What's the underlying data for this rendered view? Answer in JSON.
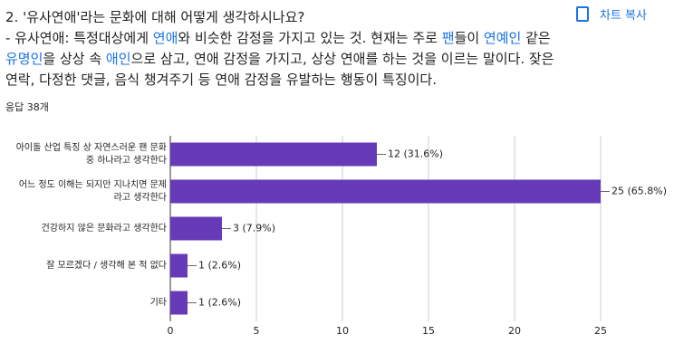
{
  "question": {
    "title": "2. '유사연애'라는 문화에 대해 어떻게 생각하시나요?",
    "description": [
      {
        "text": "- 유사연애:  특정대상에게 ",
        "link": false
      },
      {
        "text": "연애",
        "link": true
      },
      {
        "text": "와 비슷한 감정을 가지고 있는 것. 현재는 주로 ",
        "link": false
      },
      {
        "text": "팬",
        "link": true
      },
      {
        "text": "들이 ",
        "link": false
      },
      {
        "text": "연예인",
        "link": true
      },
      {
        "text": " 같은 ",
        "link": false
      },
      {
        "text": "유명인",
        "link": true
      },
      {
        "text": "을 상상 속 ",
        "link": false
      },
      {
        "text": "애인",
        "link": true
      },
      {
        "text": "으로 삼고, 연애 감정을 가지고, 상상 연애를 하는 것을 이르는 말이다.  잦은 연락, 다정한 댓글, 음식 챙겨주기 등 연애 감정을 유발하는 행동이 특징이다.",
        "link": false
      }
    ]
  },
  "response_count": "응답 38개",
  "copy_button": "차트 복사",
  "chart_data": {
    "type": "hbar",
    "categories": [
      "아이돌 산업 특징 상 자연스러운 팬 문화 중 하나라고 생각한다",
      "어느 정도 이해는 되지만 지나치면 문제라고 생각한다",
      "건강하지 않은 문화라고 생각한다",
      "잘 모르겠다 / 생각해 본 적 없다",
      "기타"
    ],
    "values": [
      12,
      25,
      3,
      1,
      1
    ],
    "value_labels": [
      "12 (31.6%)",
      "25 (65.8%)",
      "3 (7.9%)",
      "1 (2.6%)",
      "1 (2.6%)"
    ],
    "color": "#673ab7",
    "xlim": [
      0,
      25
    ],
    "xticks": [
      0,
      5,
      10,
      15,
      20,
      25
    ],
    "grid": true
  }
}
